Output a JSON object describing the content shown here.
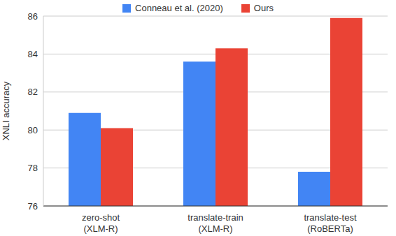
{
  "chart_data": {
    "type": "bar",
    "categories": [
      "zero-shot\n(XLM-R)",
      "translate-train\n(XLM-R)",
      "translate-test\n(RoBERTa)"
    ],
    "series": [
      {
        "name": "Conneau et al. (2020)",
        "color": "#4285f4",
        "values": [
          80.9,
          83.6,
          77.8
        ]
      },
      {
        "name": "Ours",
        "color": "#ea4335",
        "values": [
          80.1,
          84.3,
          85.9
        ]
      }
    ],
    "y_label": "XNLI accuracy",
    "ylim": [
      76,
      86
    ],
    "yticks": [
      76,
      78,
      80,
      82,
      84,
      86
    ],
    "grid": true,
    "legend": "top"
  }
}
